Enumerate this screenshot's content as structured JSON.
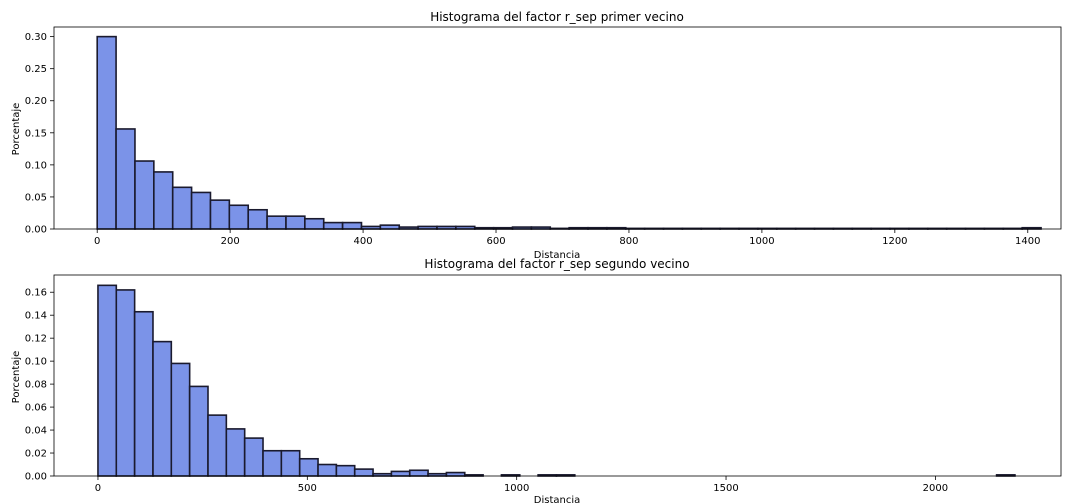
{
  "chart_data": [
    {
      "type": "bar",
      "title": "Histograma del factor r_sep primer vecino",
      "xlabel": "Distancia",
      "ylabel": "Porcentaje",
      "xlim": [
        -65,
        1450
      ],
      "ylim": [
        0,
        0.315
      ],
      "xticks": [
        0,
        200,
        400,
        600,
        800,
        1000,
        1200,
        1400
      ],
      "yticks": [
        0,
        0.05,
        0.1,
        0.15,
        0.2,
        0.25,
        0.3
      ],
      "ytick_labels": [
        "0.00",
        "0.05",
        "0.10",
        "0.15",
        "0.20",
        "0.25",
        "0.30"
      ],
      "bin_width": 28.4,
      "bin_start": 0,
      "values": [
        0.3,
        0.156,
        0.106,
        0.089,
        0.065,
        0.057,
        0.045,
        0.037,
        0.03,
        0.02,
        0.02,
        0.016,
        0.01,
        0.01,
        0.004,
        0.006,
        0.003,
        0.004,
        0.004,
        0.004,
        0.002,
        0.002,
        0.003,
        0.003,
        0.001,
        0.002,
        0.002,
        0.002,
        0.001,
        0.001,
        0.001,
        0.001,
        0.001,
        0.001,
        0.001,
        0.001,
        0.001,
        0.001,
        0.001,
        0.001,
        0.001,
        0.001,
        0.001,
        0.001,
        0.001,
        0.001,
        0.001,
        0.001,
        0.001,
        0.002
      ],
      "bar_color": "#7b93e8",
      "edge_color": "#1a1a2e"
    },
    {
      "type": "bar",
      "title": "Histograma del factor r_sep segundo vecino",
      "xlabel": "Distancia",
      "ylabel": "Porcentaje",
      "xlim": [
        -105,
        2300
      ],
      "ylim": [
        0,
        0.175
      ],
      "xticks": [
        0,
        500,
        1000,
        1500,
        2000
      ],
      "yticks": [
        0,
        0.02,
        0.04,
        0.06,
        0.08,
        0.1,
        0.12,
        0.14,
        0.16
      ],
      "ytick_labels": [
        "0.00",
        "0.02",
        "0.04",
        "0.06",
        "0.08",
        "0.10",
        "0.12",
        "0.14",
        "0.16"
      ],
      "bin_width": 43.8,
      "bin_start": 0,
      "values": [
        0.166,
        0.162,
        0.143,
        0.117,
        0.098,
        0.078,
        0.053,
        0.041,
        0.033,
        0.022,
        0.022,
        0.015,
        0.01,
        0.009,
        0.006,
        0.002,
        0.004,
        0.005,
        0.002,
        0.003,
        0.001,
        0.0,
        0.001,
        0.0,
        0.001,
        0.001,
        0.0,
        0.0,
        0.0,
        0.0,
        0.0,
        0.0,
        0.0,
        0.0,
        0.0,
        0.0,
        0.0,
        0.0,
        0.0,
        0.0,
        0.0,
        0.0,
        0.0,
        0.0,
        0.0,
        0.0,
        0.0,
        0.0,
        0.0,
        0.001
      ],
      "bar_color": "#7b93e8",
      "edge_color": "#1a1a2e"
    }
  ]
}
